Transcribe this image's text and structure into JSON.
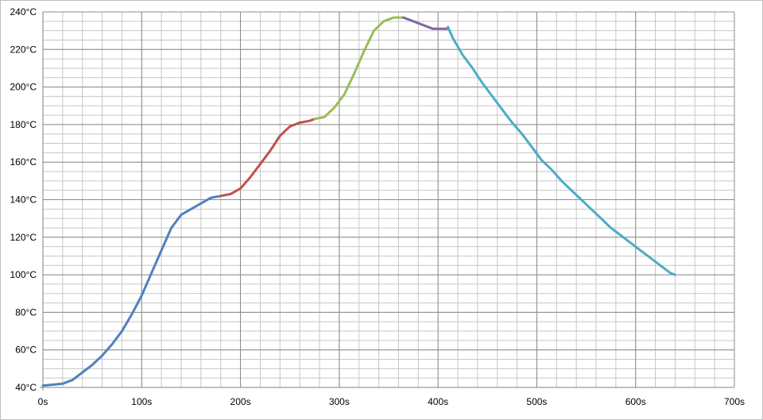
{
  "chart_data": {
    "type": "line",
    "title": "",
    "xlabel": "",
    "ylabel": "",
    "xlim": [
      0,
      700
    ],
    "ylim": [
      40,
      240
    ],
    "x_major_step": 100,
    "x_minor_step": 20,
    "y_major_step": 20,
    "y_minor_step": 5,
    "grid": "on",
    "legend": "none",
    "x_tick_labels": [
      "0s",
      "100s",
      "200s",
      "300s",
      "400s",
      "500s",
      "600s",
      "700s"
    ],
    "y_tick_labels": [
      "40°C",
      "60°C",
      "80°C",
      "100°C",
      "120°C",
      "140°C",
      "160°C",
      "180°C",
      "200°C",
      "220°C",
      "240°C"
    ],
    "series": [
      {
        "color": "#4f81bd",
        "points": [
          [
            0,
            41
          ],
          [
            10,
            41.5
          ],
          [
            20,
            42
          ],
          [
            30,
            44
          ],
          [
            40,
            48
          ],
          [
            50,
            52
          ],
          [
            60,
            57
          ],
          [
            70,
            63
          ],
          [
            80,
            70
          ],
          [
            90,
            79
          ],
          [
            100,
            89
          ],
          [
            110,
            101
          ],
          [
            120,
            113
          ],
          [
            130,
            125
          ],
          [
            140,
            132
          ],
          [
            150,
            135
          ],
          [
            160,
            138
          ],
          [
            170,
            141
          ],
          [
            180,
            142
          ]
        ]
      },
      {
        "color": "#c0504d",
        "points": [
          [
            180,
            142
          ],
          [
            190,
            143
          ],
          [
            200,
            146
          ],
          [
            210,
            152
          ],
          [
            220,
            159
          ],
          [
            230,
            166
          ],
          [
            240,
            174
          ],
          [
            250,
            179
          ],
          [
            260,
            181
          ],
          [
            270,
            182
          ],
          [
            275,
            183
          ]
        ]
      },
      {
        "color": "#9bbb59",
        "points": [
          [
            275,
            183
          ],
          [
            285,
            184
          ],
          [
            295,
            189
          ],
          [
            305,
            196
          ],
          [
            315,
            207
          ],
          [
            325,
            219
          ],
          [
            335,
            230
          ],
          [
            345,
            235
          ],
          [
            355,
            237
          ],
          [
            365,
            237
          ]
        ]
      },
      {
        "color": "#8064a2",
        "points": [
          [
            365,
            237
          ],
          [
            375,
            235
          ],
          [
            385,
            233
          ],
          [
            395,
            231
          ],
          [
            405,
            231
          ],
          [
            410,
            231
          ]
        ]
      },
      {
        "color": "#4bacc6",
        "points": [
          [
            410,
            232
          ],
          [
            415,
            226
          ],
          [
            425,
            217
          ],
          [
            435,
            210
          ],
          [
            445,
            202
          ],
          [
            455,
            195
          ],
          [
            465,
            188
          ],
          [
            475,
            181
          ],
          [
            485,
            175
          ],
          [
            495,
            168
          ],
          [
            505,
            161
          ],
          [
            515,
            156
          ],
          [
            525,
            150
          ],
          [
            535,
            145
          ],
          [
            545,
            140
          ],
          [
            555,
            135
          ],
          [
            565,
            130
          ],
          [
            575,
            125
          ],
          [
            585,
            121
          ],
          [
            595,
            117
          ],
          [
            605,
            113
          ],
          [
            615,
            109
          ],
          [
            625,
            105
          ],
          [
            635,
            101
          ],
          [
            640,
            100
          ]
        ]
      }
    ]
  }
}
